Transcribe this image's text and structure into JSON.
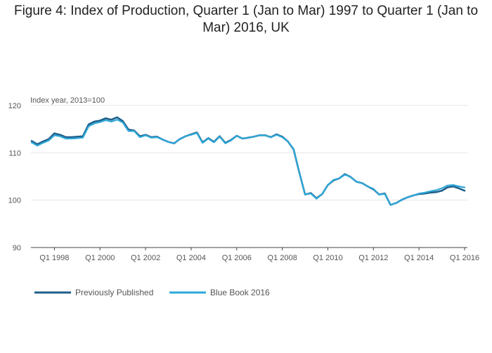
{
  "chart_data": {
    "type": "line",
    "title": "Figure 4: Index of Production, Quarter 1 (Jan to Mar) 1997 to Quarter 1 (Jan to Mar) 2016, UK",
    "ylabel": "Index year, 2013=100",
    "xlabel": "",
    "ylim": [
      90,
      120
    ],
    "yticks": [
      90,
      100,
      110,
      120
    ],
    "xticks": [
      "Q1 1998",
      "Q1 2000",
      "Q1 2002",
      "Q1 2004",
      "Q1 2006",
      "Q1 2008",
      "Q1 2010",
      "Q1 2012",
      "Q1 2014",
      "Q1 2016"
    ],
    "x_range": [
      "Q1 1997",
      "Q1 2016"
    ],
    "legend_position": "bottom-left",
    "colors": {
      "Previously Published": "#1f5f8b",
      "Blue Book 2016": "#2ea8d8"
    },
    "series": [
      {
        "name": "Previously Published",
        "values": [
          112.5,
          111.8,
          112.4,
          112.9,
          114.1,
          113.8,
          113.3,
          113.3,
          113.4,
          113.5,
          116.0,
          116.6,
          116.8,
          117.3,
          117.0,
          117.5,
          116.7,
          114.9,
          114.7,
          113.5,
          113.8,
          113.3,
          113.4,
          112.8,
          112.3,
          112.0,
          112.9,
          113.5,
          113.9,
          114.3,
          112.2,
          113.1,
          112.3,
          113.5,
          112.1,
          112.7,
          113.6,
          113.0,
          113.2,
          113.4,
          113.7,
          113.7,
          113.3,
          113.9,
          113.4,
          112.4,
          110.7,
          105.8,
          101.2,
          101.5,
          100.4,
          101.3,
          103.2,
          104.2,
          104.6,
          105.5,
          104.9,
          103.9,
          103.6,
          102.9,
          102.3,
          101.2,
          101.4,
          99.0,
          99.4,
          100.1,
          100.6,
          101.0,
          101.3,
          101.4,
          101.6,
          101.7,
          102.0,
          102.7,
          102.9,
          102.5,
          102.0
        ]
      },
      {
        "name": "Blue Book 2016",
        "values": [
          112.2,
          111.5,
          112.1,
          112.6,
          113.7,
          113.5,
          113.0,
          113.0,
          113.1,
          113.2,
          115.6,
          116.2,
          116.5,
          116.9,
          116.6,
          117.0,
          116.4,
          114.6,
          114.6,
          113.3,
          113.7,
          113.2,
          113.3,
          112.8,
          112.3,
          112.0,
          112.9,
          113.5,
          113.8,
          114.2,
          112.1,
          113.0,
          112.2,
          113.4,
          112.0,
          112.6,
          113.6,
          113.0,
          113.2,
          113.4,
          113.7,
          113.7,
          113.3,
          113.8,
          113.3,
          112.4,
          110.8,
          105.8,
          101.2,
          101.4,
          100.3,
          101.3,
          103.2,
          104.3,
          104.6,
          105.4,
          104.9,
          103.9,
          103.6,
          102.9,
          102.4,
          101.2,
          101.3,
          99.0,
          99.4,
          100.1,
          100.6,
          101.0,
          101.4,
          101.6,
          101.9,
          102.1,
          102.5,
          103.1,
          103.2,
          102.9,
          102.7
        ]
      }
    ]
  }
}
